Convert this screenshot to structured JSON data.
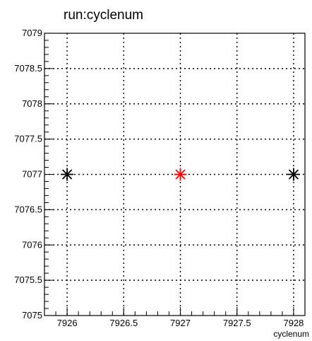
{
  "chart_data": {
    "type": "scatter",
    "title": "run:cyclenum",
    "xlabel": "cyclenum",
    "ylabel": "",
    "xlim": [
      7925.8,
      7928.1
    ],
    "ylim": [
      7075,
      7079
    ],
    "grid": true,
    "x_ticks": [
      "7926",
      "7926.5",
      "7927",
      "7927.5",
      "7928"
    ],
    "y_ticks": [
      "7075",
      "7075.5",
      "7076",
      "7076.5",
      "7077",
      "7077.5",
      "7078",
      "7078.5",
      "7079"
    ],
    "x_tick_values": [
      7926,
      7926.5,
      7927,
      7927.5,
      7928
    ],
    "y_tick_values": [
      7075,
      7075.5,
      7076,
      7076.5,
      7077,
      7077.5,
      7078,
      7078.5,
      7079
    ],
    "points": [
      {
        "x": 7926,
        "y": 7077,
        "color": "#000000"
      },
      {
        "x": 7927,
        "y": 7077,
        "color": "#ff0000"
      },
      {
        "x": 7928,
        "y": 7077,
        "color": "#000000"
      }
    ],
    "marker": "asterisk"
  }
}
